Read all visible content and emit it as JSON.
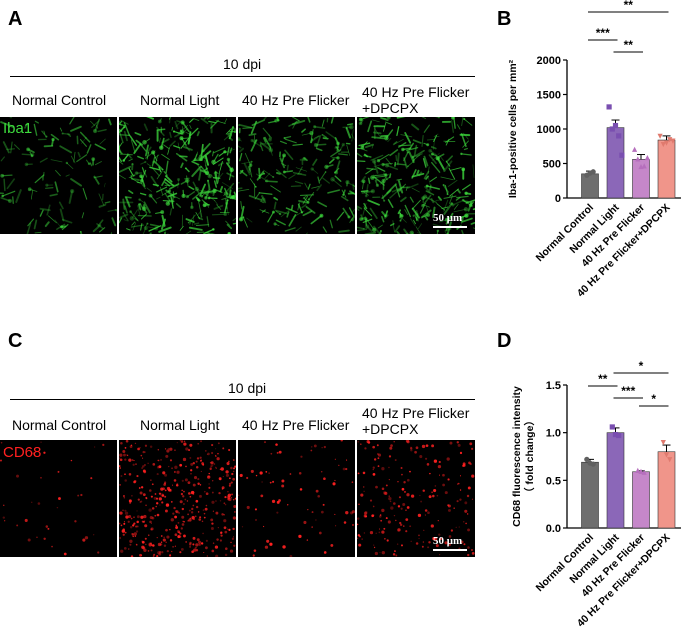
{
  "colors": {
    "iba1": "#3ddc3d",
    "cd68": "#ff2020",
    "bars": [
      "#6e6e6e",
      "#8b67b8",
      "#c587c9",
      "#f0958a"
    ],
    "points": [
      "#606060",
      "#7a4fb0",
      "#b66fbd",
      "#e07a6e"
    ]
  },
  "panels": {
    "A": {
      "letter": "A",
      "dpi_label": "10 dpi",
      "stain": "Iba1",
      "scale": "50 μm",
      "conditions": [
        "Normal Control",
        "Normal Light",
        "40 Hz Pre Flicker",
        "40 Hz Pre Flicker",
        "+DPCPX"
      ]
    },
    "C": {
      "letter": "C",
      "dpi_label": "10 dpi",
      "stain": "CD68",
      "scale": "50 μm",
      "conditions": [
        "Normal Control",
        "Normal Light",
        "40 Hz Pre Flicker",
        "40 Hz Pre Flicker",
        "+DPCPX"
      ]
    },
    "B": {
      "letter": "B"
    },
    "D": {
      "letter": "D"
    },
    "micrographs": {
      "iba1_density": [
        0.25,
        1.0,
        0.55,
        0.85
      ],
      "cd68_density": [
        0.05,
        1.0,
        0.15,
        0.45
      ]
    }
  },
  "chart_data": [
    {
      "type": "bar",
      "panel": "B",
      "categories": [
        "Normal Control",
        "Normal Light",
        "40 Hz Pre Flicker",
        "40 Hz Pre Flicker+DPCPX"
      ],
      "values": [
        350,
        1020,
        560,
        840
      ],
      "errors": [
        40,
        110,
        70,
        60
      ],
      "points": [
        [
          330,
          360,
          380
        ],
        [
          1320,
          1000,
          1050,
          900,
          620
        ],
        [
          700,
          560,
          450,
          460,
          580
        ],
        [
          900,
          780,
          800,
          850,
          830
        ]
      ],
      "ylabel": "Iba-1-positive cells per mm²",
      "ylim": [
        0,
        2000
      ],
      "yticks": [
        0,
        500,
        1000,
        1500,
        2000
      ],
      "significance": [
        {
          "from": 0,
          "to": 1,
          "label": "***"
        },
        {
          "from": 1,
          "to": 2,
          "label": "**"
        },
        {
          "from": 0,
          "to": 3,
          "label": "**"
        }
      ]
    },
    {
      "type": "bar",
      "panel": "D",
      "categories": [
        "Normal Control",
        "Normal Light",
        "40 Hz Pre Flicker",
        "40 Hz Pre Flicker+DPCPX"
      ],
      "values": [
        0.69,
        1.0,
        0.59,
        0.8
      ],
      "errors": [
        0.03,
        0.05,
        0.01,
        0.07
      ],
      "points": [
        [
          0.72,
          0.68,
          0.67
        ],
        [
          1.06,
          0.98,
          0.97
        ],
        [
          0.6,
          0.59,
          0.58
        ],
        [
          0.9,
          0.77,
          0.72
        ]
      ],
      "ylabel": "CD68 fluorescence intensity\n（ fold change）",
      "ylim": [
        0,
        1.5
      ],
      "yticks": [
        0.0,
        0.5,
        1.0,
        1.5
      ],
      "significance": [
        {
          "from": 0,
          "to": 1,
          "label": "**"
        },
        {
          "from": 1,
          "to": 2,
          "label": "***"
        },
        {
          "from": 1,
          "to": 3,
          "label": "*"
        },
        {
          "from": 2,
          "to": 3,
          "label": "*"
        }
      ]
    }
  ]
}
